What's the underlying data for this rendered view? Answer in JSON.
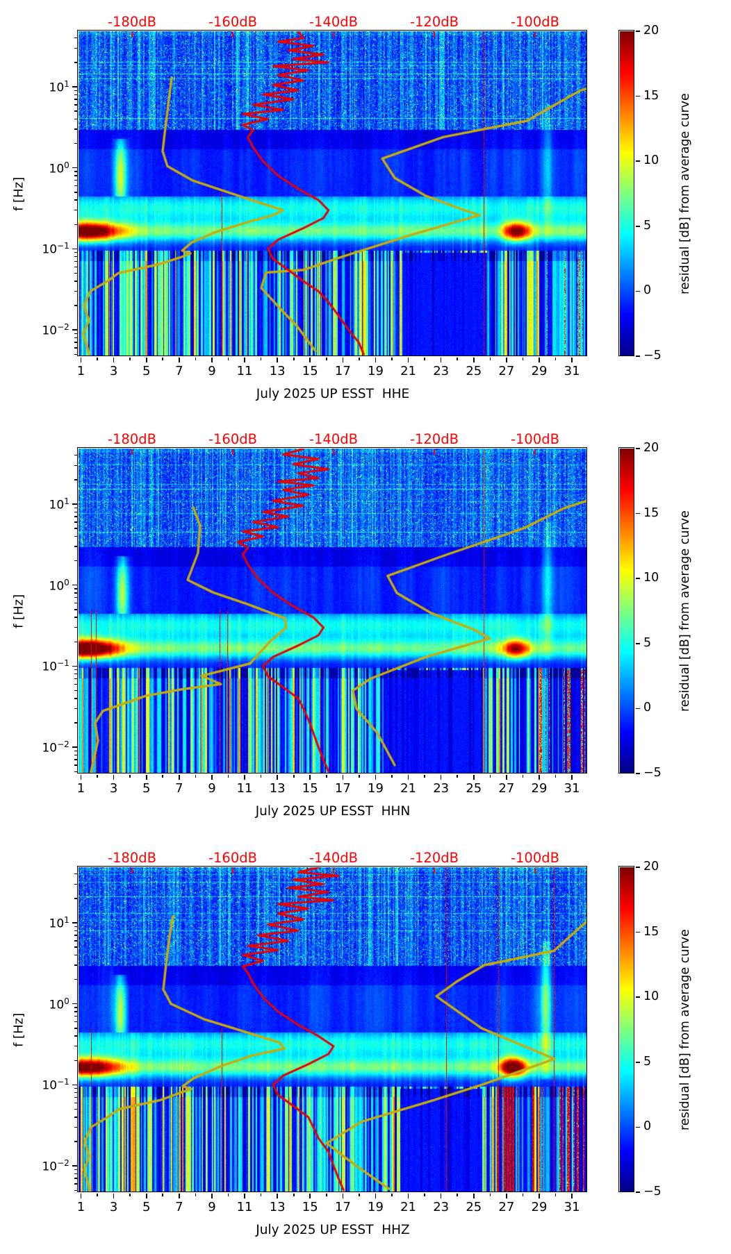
{
  "chart_data": {
    "type": "heatmap",
    "description": "Three stacked day-frequency residual spectrograms (jet colormap) for station UP ESST channels HHE, HHN, HHZ, July 2025. Each panel overlays an average PSD curve (red, read against the red dB axis on top) and a reference curve (dark yellow). Color shows residual [dB] from average curve, -5 to 20 dB.",
    "shared": {
      "ylabel": "f [Hz]",
      "colorbar": {
        "label": "residual [dB] from average curve",
        "vmin": -5,
        "vmax": 20,
        "ticks": [
          20,
          15,
          10,
          5,
          0,
          -5
        ],
        "colormap": "jet"
      },
      "top_axis": {
        "unit": "dB",
        "ticks": [
          -180,
          -160,
          -140,
          -120,
          -100
        ],
        "labels": [
          "-180dB",
          "-160dB",
          "-140dB",
          "-120dB",
          "-100dB"
        ],
        "color": "#ff0000"
      },
      "x_axis": {
        "labeled_days": [
          1,
          3,
          5,
          7,
          9,
          11,
          13,
          15,
          17,
          19,
          21,
          23,
          25,
          27,
          29,
          31
        ],
        "minor_days": [
          2,
          4,
          6,
          8,
          10,
          12,
          14,
          16,
          18,
          20,
          22,
          24,
          26,
          28,
          30
        ],
        "day_min": 0.85,
        "day_max": 31.93
      },
      "y_axis": {
        "scale": "log",
        "f_min": 0.0047,
        "f_max": 48,
        "major_ticks": [
          {
            "f": 10,
            "mant": "10",
            "exp": "1"
          },
          {
            "f": 1,
            "mant": "10",
            "exp": "0"
          },
          {
            "f": 0.1,
            "mant": "10",
            "exp": "−1"
          },
          {
            "f": 0.01,
            "mant": "10",
            "exp": "−2"
          }
        ]
      },
      "curve_colors": {
        "average_psd": "#e80000",
        "reference": "#c9ab0b"
      }
    },
    "panels": [
      {
        "title": "July 2025 UP ESST  HHE",
        "channel": "HHE",
        "seed": 3,
        "red_curve_f_db": [
          [
            48,
            -147
          ],
          [
            40,
            -146
          ],
          [
            36,
            -151
          ],
          [
            32,
            -144
          ],
          [
            28,
            -149
          ],
          [
            25,
            -142
          ],
          [
            22,
            -148
          ],
          [
            20,
            -141
          ],
          [
            18,
            -152
          ],
          [
            16,
            -145
          ],
          [
            14,
            -151
          ],
          [
            12,
            -146
          ],
          [
            10.5,
            -152
          ],
          [
            9,
            -147
          ],
          [
            8,
            -154
          ],
          [
            7,
            -148
          ],
          [
            6,
            -156
          ],
          [
            5.2,
            -150
          ],
          [
            4.6,
            -158
          ],
          [
            4,
            -153
          ],
          [
            3.4,
            -158
          ],
          [
            2.9,
            -156
          ],
          [
            2.4,
            -157
          ],
          [
            1.8,
            -156
          ],
          [
            1.2,
            -154
          ],
          [
            0.8,
            -151
          ],
          [
            0.55,
            -147
          ],
          [
            0.4,
            -143
          ],
          [
            0.3,
            -141
          ],
          [
            0.24,
            -142
          ],
          [
            0.18,
            -146
          ],
          [
            0.13,
            -151
          ],
          [
            0.1,
            -153
          ],
          [
            0.075,
            -152
          ],
          [
            0.055,
            -149
          ],
          [
            0.04,
            -146
          ],
          [
            0.03,
            -143
          ],
          [
            0.022,
            -141
          ],
          [
            0.015,
            -139
          ],
          [
            0.01,
            -137
          ],
          [
            0.007,
            -135
          ],
          [
            0.005,
            -134
          ]
        ],
        "yellow_left_f_day": [
          [
            13,
            6.54
          ],
          [
            6,
            6.33
          ],
          [
            2.6,
            6.11
          ],
          [
            1.6,
            5.99
          ],
          [
            1.05,
            6.28
          ],
          [
            0.7,
            7.81
          ],
          [
            0.5,
            9.98
          ],
          [
            0.36,
            12.1
          ],
          [
            0.3,
            13.33
          ],
          [
            0.26,
            12.74
          ],
          [
            0.21,
            11.04
          ],
          [
            0.16,
            9.17
          ],
          [
            0.12,
            7.77
          ],
          [
            0.095,
            7.18
          ],
          [
            0.088,
            7.69
          ],
          [
            0.078,
            7.05
          ],
          [
            0.065,
            5.82
          ],
          [
            0.05,
            3.27
          ],
          [
            0.04,
            2.63
          ],
          [
            0.03,
            1.57
          ],
          [
            0.02,
            1.19
          ],
          [
            0.013,
            1.49
          ],
          [
            0.009,
            1.15
          ],
          [
            0.006,
            1.4
          ],
          [
            0.0047,
            1.53
          ]
        ],
        "yellow_right_f_day": [
          [
            9.5,
            31.93
          ],
          [
            9.0,
            31.51
          ],
          [
            3.8,
            28.24
          ],
          [
            2.4,
            23.14
          ],
          [
            1.3,
            19.41
          ],
          [
            0.75,
            20.17
          ],
          [
            0.45,
            22.08
          ],
          [
            0.3,
            24.42
          ],
          [
            0.26,
            25.35
          ],
          [
            0.15,
            21.23
          ],
          [
            0.08,
            16.98
          ],
          [
            0.055,
            14.61
          ],
          [
            0.051,
            12.31
          ],
          [
            0.033,
            12.02
          ],
          [
            0.018,
            13.21
          ],
          [
            0.011,
            14.22
          ],
          [
            0.0055,
            15.33
          ]
        ],
        "features": {
          "left_hot": 17,
          "right_blob": [
            27.6,
            15
          ],
          "streak_day": 3.4,
          "red_lines": [
            [
              9.6,
              0.5
            ],
            [
              25.6,
              50
            ]
          ],
          "dark_patch": [
            20.6,
            25.8
          ],
          "hot_tail": 0.5,
          "hot_cluster": null,
          "bright_col": [
            29.5,
            4
          ]
        }
      },
      {
        "title": "July 2025 UP ESST  HHN",
        "channel": "HHN",
        "seed": 11,
        "red_curve_f_db": [
          [
            48,
            -146
          ],
          [
            41,
            -150
          ],
          [
            36,
            -143
          ],
          [
            31,
            -148
          ],
          [
            27,
            -141
          ],
          [
            24,
            -147
          ],
          [
            21,
            -143
          ],
          [
            19,
            -151
          ],
          [
            17,
            -144
          ],
          [
            15,
            -150
          ],
          [
            13,
            -145
          ],
          [
            11,
            -152
          ],
          [
            9.5,
            -146
          ],
          [
            8,
            -154
          ],
          [
            7,
            -149
          ],
          [
            6,
            -156
          ],
          [
            5.2,
            -151
          ],
          [
            4.6,
            -158
          ],
          [
            4,
            -154
          ],
          [
            3.4,
            -159
          ],
          [
            2.9,
            -157
          ],
          [
            2.4,
            -158
          ],
          [
            1.8,
            -157
          ],
          [
            1.2,
            -155
          ],
          [
            0.8,
            -152
          ],
          [
            0.55,
            -148
          ],
          [
            0.4,
            -144
          ],
          [
            0.3,
            -142
          ],
          [
            0.24,
            -143
          ],
          [
            0.18,
            -147
          ],
          [
            0.13,
            -152
          ],
          [
            0.1,
            -154
          ],
          [
            0.075,
            -153
          ],
          [
            0.055,
            -150
          ],
          [
            0.04,
            -147
          ],
          [
            0.03,
            -146
          ],
          [
            0.022,
            -145
          ],
          [
            0.015,
            -144
          ],
          [
            0.01,
            -143
          ],
          [
            0.007,
            -142
          ],
          [
            0.005,
            -141
          ]
        ],
        "yellow_left_f_day": [
          [
            9.2,
            7.86
          ],
          [
            5.4,
            8.28
          ],
          [
            2.5,
            8.15
          ],
          [
            1.16,
            7.52
          ],
          [
            0.81,
            9.09
          ],
          [
            0.58,
            11.21
          ],
          [
            0.39,
            13.46
          ],
          [
            0.3,
            13.55
          ],
          [
            0.2,
            12.53
          ],
          [
            0.108,
            11.34
          ],
          [
            0.076,
            8.37
          ],
          [
            0.06,
            9.55
          ],
          [
            0.052,
            7.22
          ],
          [
            0.043,
            4.97
          ],
          [
            0.028,
            2.34
          ],
          [
            0.02,
            1.87
          ],
          [
            0.012,
            2.04
          ],
          [
            0.0046,
            1.57
          ]
        ],
        "yellow_right_f_day": [
          [
            11,
            31.93
          ],
          [
            9,
            30.57
          ],
          [
            5,
            28.02
          ],
          [
            2.3,
            23.14
          ],
          [
            1.3,
            19.74
          ],
          [
            0.8,
            20.3
          ],
          [
            0.45,
            22.42
          ],
          [
            0.28,
            25.05
          ],
          [
            0.22,
            25.98
          ],
          [
            0.13,
            22.08
          ],
          [
            0.07,
            18.68
          ],
          [
            0.05,
            17.62
          ],
          [
            0.03,
            17.83
          ],
          [
            0.015,
            19.11
          ],
          [
            0.006,
            20.17
          ]
        ],
        "features": {
          "left_hot": 19,
          "right_blob": [
            27.6,
            13
          ],
          "streak_day": 3.5,
          "red_lines": [
            [
              1.62,
              0.5
            ],
            [
              1.9,
              0.5
            ],
            [
              9.45,
              0.5
            ],
            [
              9.95,
              0.5
            ],
            [
              25.6,
              50
            ]
          ],
          "dark_patch": [
            19.5,
            25.5
          ],
          "hot_tail": 0.65,
          "hot_cluster": null,
          "bright_col": [
            29.5,
            5
          ]
        }
      },
      {
        "title": "July 2025 UP ESST  HHZ",
        "channel": "HHZ",
        "seed": 27,
        "red_curve_f_db": [
          [
            48,
            -143
          ],
          [
            42,
            -147
          ],
          [
            38,
            -139
          ],
          [
            34,
            -148
          ],
          [
            30,
            -142
          ],
          [
            27,
            -149
          ],
          [
            24,
            -141
          ],
          [
            21,
            -147
          ],
          [
            19,
            -140
          ],
          [
            17,
            -151
          ],
          [
            15,
            -145
          ],
          [
            13,
            -151
          ],
          [
            11,
            -146
          ],
          [
            9.5,
            -153
          ],
          [
            8,
            -147
          ],
          [
            7,
            -155
          ],
          [
            6,
            -149
          ],
          [
            5.2,
            -157
          ],
          [
            4.6,
            -151
          ],
          [
            4,
            -158
          ],
          [
            3.4,
            -154
          ],
          [
            2.9,
            -158
          ],
          [
            2.4,
            -157
          ],
          [
            1.8,
            -156
          ],
          [
            1.2,
            -154
          ],
          [
            0.8,
            -151
          ],
          [
            0.55,
            -147
          ],
          [
            0.4,
            -143
          ],
          [
            0.3,
            -140
          ],
          [
            0.24,
            -141
          ],
          [
            0.18,
            -145
          ],
          [
            0.13,
            -150
          ],
          [
            0.1,
            -152
          ],
          [
            0.075,
            -151
          ],
          [
            0.055,
            -148
          ],
          [
            0.04,
            -145
          ],
          [
            0.03,
            -144
          ],
          [
            0.022,
            -143
          ],
          [
            0.015,
            -141
          ],
          [
            0.01,
            -140
          ],
          [
            0.007,
            -139
          ],
          [
            0.005,
            -138
          ]
        ],
        "yellow_left_f_day": [
          [
            12,
            6.62
          ],
          [
            6,
            6.37
          ],
          [
            2.6,
            6.16
          ],
          [
            1.5,
            6.03
          ],
          [
            1.0,
            6.5
          ],
          [
            0.65,
            8.49
          ],
          [
            0.45,
            11.04
          ],
          [
            0.33,
            13.16
          ],
          [
            0.28,
            13.42
          ],
          [
            0.23,
            11.46
          ],
          [
            0.17,
            9.55
          ],
          [
            0.12,
            7.86
          ],
          [
            0.096,
            7.22
          ],
          [
            0.089,
            7.73
          ],
          [
            0.08,
            7.09
          ],
          [
            0.065,
            5.86
          ],
          [
            0.05,
            3.31
          ],
          [
            0.04,
            2.63
          ],
          [
            0.03,
            1.61
          ],
          [
            0.02,
            1.23
          ],
          [
            0.013,
            1.49
          ],
          [
            0.009,
            1.19
          ],
          [
            0.006,
            1.44
          ],
          [
            0.0047,
            1.53
          ]
        ],
        "yellow_right_f_day": [
          [
            10.5,
            31.93
          ],
          [
            4.5,
            29.89
          ],
          [
            3.0,
            25.65
          ],
          [
            1.9,
            23.99
          ],
          [
            1.24,
            22.72
          ],
          [
            0.5,
            25.48
          ],
          [
            0.209,
            29.93
          ],
          [
            0.1,
            25.48
          ],
          [
            0.064,
            22.46
          ],
          [
            0.035,
            18.13
          ],
          [
            0.019,
            16.01
          ],
          [
            0.01,
            17.83
          ],
          [
            0.0052,
            19.83
          ]
        ],
        "features": {
          "left_hot": 16,
          "right_blob": [
            27.4,
            18
          ],
          "streak_day": 3.4,
          "red_lines": [
            [
              1.6,
              0.5
            ],
            [
              9.6,
              0.5
            ],
            [
              23.3,
              50
            ],
            [
              26.5,
              50
            ],
            [
              29.9,
              50
            ]
          ],
          "dark_patch": [
            20.5,
            25.5
          ],
          "hot_tail": 0.9,
          "hot_cluster": [
            26.4,
            28.7
          ],
          "bright_col": [
            29.4,
            8
          ]
        }
      }
    ]
  }
}
